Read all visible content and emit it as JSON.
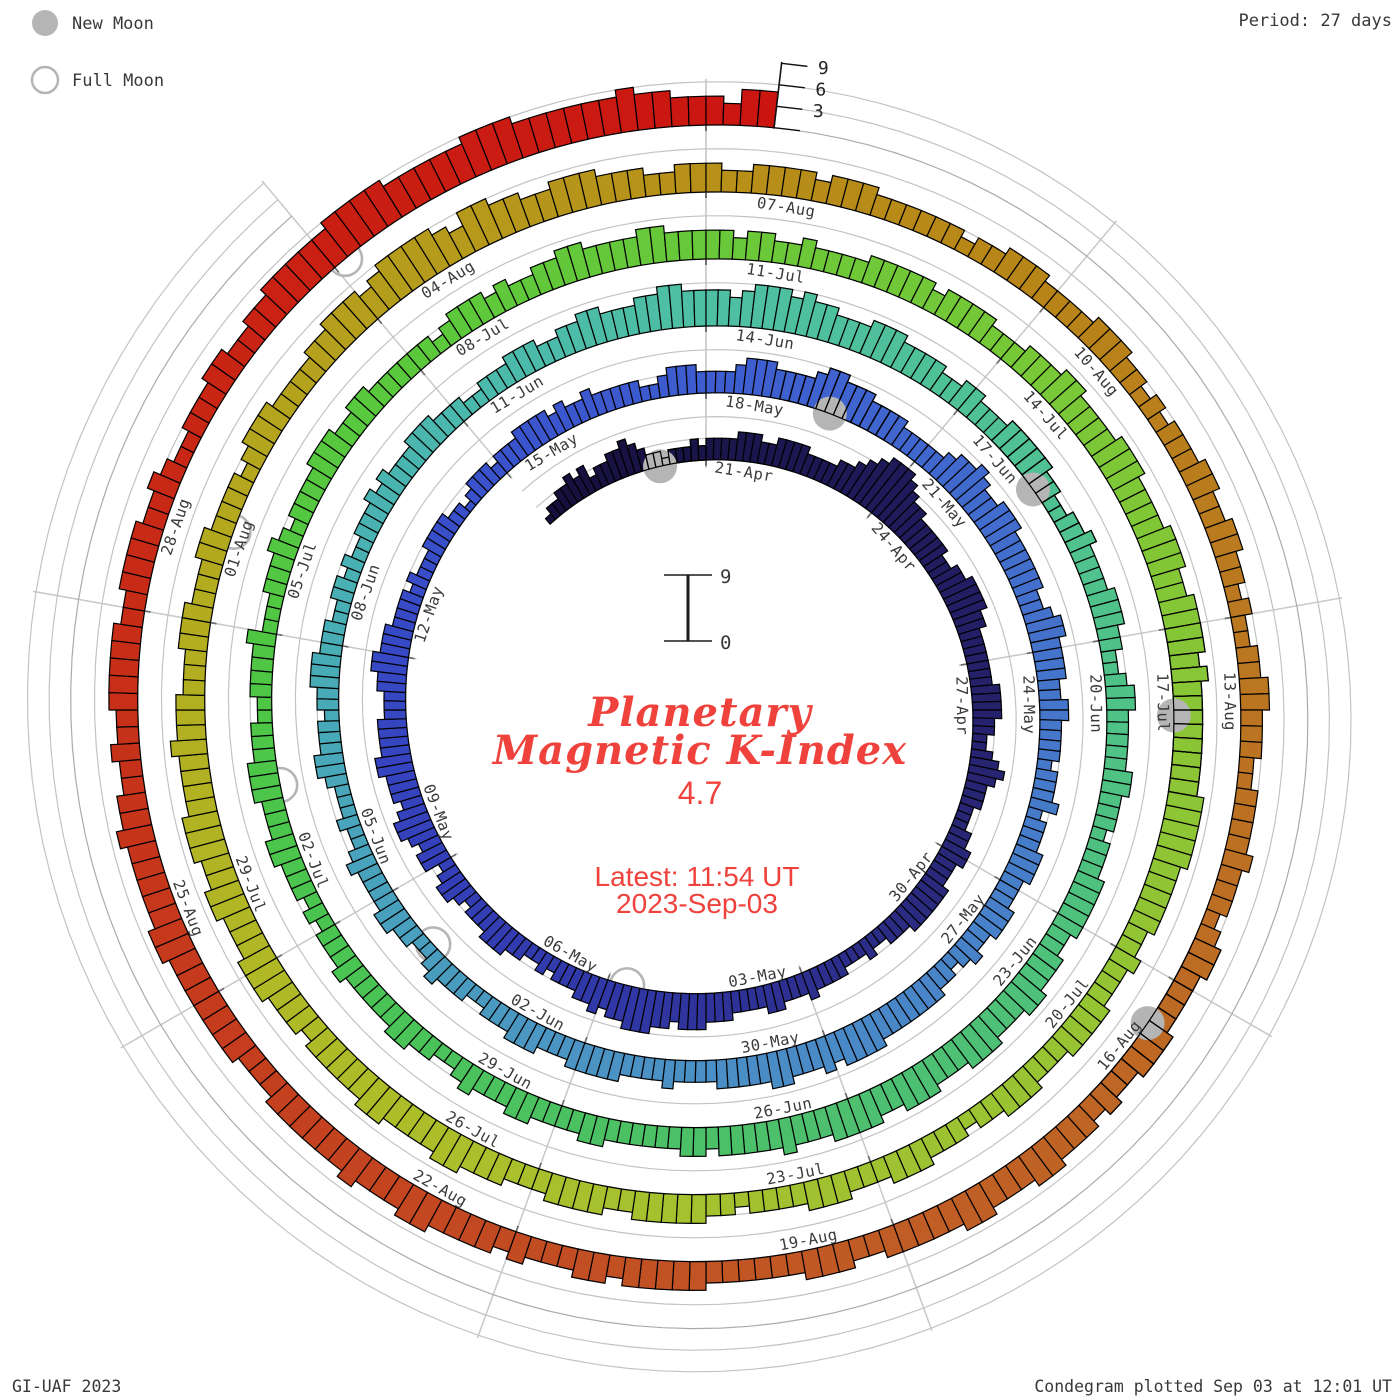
{
  "legend": {
    "new_moon_label": "New Moon",
    "full_moon_label": "Full Moon",
    "moon_gray": "#b5b5b5"
  },
  "header": {
    "period_label": "Period: 27 days"
  },
  "footer": {
    "left": "GI-UAF 2023",
    "right": "Condegram plotted Sep 03 at 12:01 UT"
  },
  "center": {
    "title_line1": "Planetary",
    "title_line2": "Magnetic K-Index",
    "current_value": "4.7",
    "latest_line1": "Latest: 11:54 UT",
    "latest_line2": "2023-Sep-03",
    "scale_top": "9",
    "scale_bottom": "0",
    "accent_red": "#EF423C"
  },
  "chart_data": {
    "type": "bar",
    "layout": "polar-spiral-condegram",
    "title": "Planetary Magnetic K-Index",
    "current_kp": 4.7,
    "period_days": 27,
    "bars_per_day": 8,
    "bar_hours": 3,
    "k_scale": {
      "min": 0,
      "max": 9,
      "ticks": [
        3,
        6,
        9
      ]
    },
    "start_date": "2023-Apr-18",
    "end_date": "2023-Sep-03 12:00 UT",
    "grid": {
      "spiral_offsets": [
        0,
        3,
        6
      ],
      "radial_every_days": 3
    },
    "date_labels": [
      "21-Apr",
      "24-Apr",
      "27-Apr",
      "30-Apr",
      "03-May",
      "06-May",
      "09-May",
      "12-May",
      "15-May",
      "18-May",
      "21-May",
      "24-May",
      "27-May",
      "30-May",
      "02-Jun",
      "05-Jun",
      "08-Jun",
      "11-Jun",
      "14-Jun",
      "17-Jun",
      "20-Jun",
      "23-Jun",
      "26-Jun",
      "29-Jun",
      "02-Jul",
      "05-Jul",
      "08-Jul",
      "11-Jul",
      "14-Jul",
      "17-Jul",
      "20-Jul",
      "23-Jul",
      "26-Jul",
      "29-Jul",
      "01-Aug",
      "04-Aug",
      "07-Aug",
      "10-Aug",
      "13-Aug",
      "16-Aug",
      "19-Aug",
      "22-Aug",
      "25-Aug",
      "28-Aug"
    ],
    "k_by_day": [
      "18-Apr 12233434",
      "19-Apr 23344543",
      "20-Apr 22122232",
      "21-Apr 33334443",
      "22-Apr 34444333",
      "23-Apr 34456788",
      "24-Apr 87655444",
      "25-Apr 44334455",
      "26-Apr 55443333",
      "27-Apr 33344443",
      "28-Apr 32234543",
      "29-Apr 33222334",
      "30-Apr 43334444",
      "01-May 44333223",
      "02-May 22233334",
      "03-May 33344333",
      "04-May 34445554",
      "05-May 55666554",
      "06-May 54433323",
      "07-May 22334443",
      "08-May 33234432",
      "09-May 44345543",
      "10-May 44455444",
      "11-May 43334455",
      "12-May 44433332",
      "13-May 32223333",
      "14-May 22123332",
      "15-May 33344443",
      "16-May 43343333",
      "17-May 32234443",
      "18-May 33345554",
      "19-May 44456655",
      "20-May 54444333",
      "21-May 33455654",
      "22-May 45554444",
      "23-May 44334554",
      "24-May 44433443",
      "25-May 33323334",
      "26-May 23334443",
      "27-May 33444334",
      "28-May 32334444",
      "29-May 44455554",
      "30-May 54445544",
      "31-May 44433334",
      "01-Jun 33334444",
      "02-Jun 43334443",
      "03-Jun 33223334",
      "04-Jun 32233443",
      "05-Jun 33343223",
      "06-Jun 22234433",
      "07-Jun 32334443",
      "08-Jun 33223323",
      "09-Jun 22333434",
      "10-Jun 33344433",
      "11-Jun 32233344",
      "12-Jun 43344554",
      "13-Jun 44556655",
      "14-Jun 55456665",
      "15-Jun 65544455",
      "16-Jun 54444334",
      "17-Jun 43334444",
      "18-Jun 43322334",
      "19-Jun 33334443",
      "20-Jun 32234433",
      "21-Jun 33344333",
      "22-Jun 23334444",
      "23-Jun 43344455",
      "24-Jun 44455544",
      "25-Jun 45554455",
      "26-Jun 55444544",
      "27-Jun 44434433",
      "28-Jun 33334433",
      "29-Jun 33443334",
      "30-Jun 32233443",
      "01-Jul 33334333",
      "02-Jul 23233344",
      "03-Jul 33344433",
      "04-Jul 32233334",
      "05-Jul 22233343",
      "06-Jul 23333444",
      "07-Jul 33443333",
      "08-Jul 33234443",
      "09-Jul 43344554",
      "10-Jul 44455444",
      "11-Jul 44344334",
      "12-Jul 33334444",
      "13-Jul 43444433",
      "14-Jul 34445544",
      "15-Jul 44555444",
      "16-Jul 45554455",
      "17-Jul 55454444",
      "18-Jul 44445555",
      "19-Jul 54444433",
      "20-Jul 43334444",
      "21-Jul 33344433",
      "22-Jul 23334443",
      "23-Jul 33444333",
      "24-Jul 32334444",
      "25-Jul 43344443",
      "26-Jul 33444554",
      "27-Jul 44455444",
      "28-Jul 44344455",
      "29-Jul 54445544",
      "30-Jul 55544445",
      "31-Jul 44433344",
      "01-Aug 43334433",
      "02-Aug 33234443",
      "03-Aug 33344555",
      "04-Aug 45666654",
      "05-Aug 66554455",
      "06-Aug 54443344",
      "07-Aug 43344443",
      "08-Aug 44433333",
      "09-Aug 32334443",
      "10-Aug 33344433",
      "11-Aug 23233344",
      "12-Aug 33443323",
      "13-Aug 22334433",
      "14-Aug 32233334",
      "15-Aug 33323443",
      "16-Aug 33344433",
      "17-Aug 43444554",
      "18-Aug 44554444",
      "19-Aug 43344433",
      "20-Aug 33334444",
      "21-Aug 43443334",
      "22-Aug 34444554",
      "23-Aug 44544444",
      "24-Aug 43334444",
      "25-Aug 44455444",
      "26-Aug 44544334",
      "27-Aug 33444443",
      "28-Aug 34444334",
      "29-Aug 32233344",
      "30-Aug 33445555",
      "31-Aug 56666555",
      "01-Sep 55666555",
      "02-Sep 55565544",
      "03-Sep 4355"
    ],
    "moons": {
      "new": [
        {
          "date": "20-Apr",
          "day": 2.2
        },
        {
          "date": "19-May",
          "day": 31.7
        },
        {
          "date": "18-Jun",
          "day": 61.2
        },
        {
          "date": "17-Jul",
          "day": 90.8
        },
        {
          "date": "16-Aug",
          "day": 120.4
        }
      ],
      "full": [
        {
          "date": "05-May",
          "day": 17.7
        },
        {
          "date": "04-Jun",
          "day": 47.2
        },
        {
          "date": "03-Jul",
          "day": 76.5
        },
        {
          "date": "01-Aug",
          "day": 105.8
        },
        {
          "date": "31-Aug",
          "day": 135.1
        }
      ]
    },
    "color_stops": [
      [
        0,
        "#150F3C"
      ],
      [
        3,
        "#1A1549"
      ],
      [
        6,
        "#1F1A59"
      ],
      [
        9,
        "#242069"
      ],
      [
        12,
        "#292878"
      ],
      [
        15,
        "#2D2F8F"
      ],
      [
        18,
        "#3138A7"
      ],
      [
        21,
        "#3440B9"
      ],
      [
        24,
        "#3749C5"
      ],
      [
        27,
        "#3A53CC"
      ],
      [
        30,
        "#3D5DD0"
      ],
      [
        33,
        "#4067CE"
      ],
      [
        36,
        "#4473CB"
      ],
      [
        39,
        "#477FC9"
      ],
      [
        42,
        "#4A8AC7"
      ],
      [
        45,
        "#4B94C3"
      ],
      [
        48,
        "#49A1BD"
      ],
      [
        51,
        "#48ADB5"
      ],
      [
        54,
        "#4BB8AD"
      ],
      [
        57,
        "#4EBFA3"
      ],
      [
        60,
        "#4FC196"
      ],
      [
        63,
        "#4FC28A"
      ],
      [
        66,
        "#4EC17D"
      ],
      [
        69,
        "#4DBF6F"
      ],
      [
        72,
        "#4BC161"
      ],
      [
        75,
        "#4AC451"
      ],
      [
        78,
        "#50C743"
      ],
      [
        81,
        "#5BC83C"
      ],
      [
        84,
        "#68C839"
      ],
      [
        87,
        "#76C837"
      ],
      [
        90,
        "#85C636"
      ],
      [
        93,
        "#93C434"
      ],
      [
        96,
        "#9FC231"
      ],
      [
        99,
        "#A9C02C"
      ],
      [
        102,
        "#B0B826"
      ],
      [
        105,
        "#B3AC20"
      ],
      [
        108,
        "#B59E1C"
      ],
      [
        111,
        "#B79019"
      ],
      [
        114,
        "#B88418"
      ],
      [
        117,
        "#BA7820"
      ],
      [
        120,
        "#BD6B24"
      ],
      [
        123,
        "#C05C26"
      ],
      [
        126,
        "#C24B22"
      ],
      [
        129,
        "#C53B1D"
      ],
      [
        132,
        "#C72C17"
      ],
      [
        135,
        "#C92013"
      ],
      [
        139,
        "#CB1410"
      ]
    ]
  }
}
